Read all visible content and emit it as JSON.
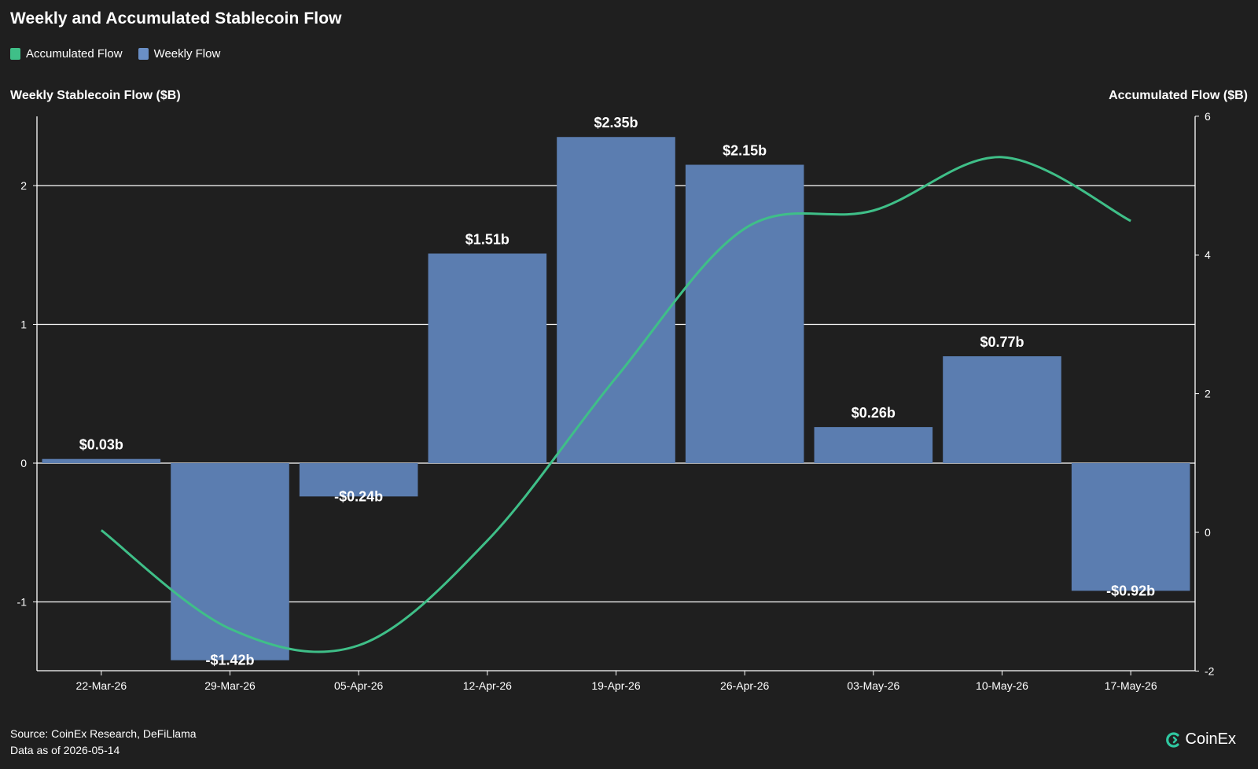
{
  "title": "Weekly and Accumulated Stablecoin Flow",
  "legend": [
    {
      "label": "Accumulated Flow",
      "color": "#3fbf88"
    },
    {
      "label": "Weekly Flow",
      "color": "#6a8fc6"
    }
  ],
  "left_axis_title": "Weekly Stablecoin Flow ($B)",
  "right_axis_title": "Accumulated Flow ($B)",
  "footer": {
    "source": "Source: CoinEx Research, DeFiLlama",
    "data_as_of": "Data as of 2026-05-14"
  },
  "logo": {
    "text": "CoinEx",
    "icon": "coinex-logo-icon"
  },
  "colors": {
    "bar": "#5b7db0",
    "line": "#3fbf88",
    "grid": "#ffffff",
    "background": "#1f1f1f"
  },
  "chart_data": {
    "type": "bar",
    "categories": [
      "22-Mar-26",
      "29-Mar-26",
      "05-Apr-26",
      "12-Apr-26",
      "19-Apr-26",
      "26-Apr-26",
      "03-May-26",
      "10-May-26",
      "17-May-26"
    ],
    "series": [
      {
        "name": "Weekly Flow",
        "type": "bar",
        "axis": "left",
        "values": [
          0.03,
          -1.42,
          -0.24,
          1.51,
          2.35,
          2.15,
          0.26,
          0.77,
          -0.92
        ],
        "labels": [
          "$0.03b",
          "-$1.42b",
          "-$0.24b",
          "$1.51b",
          "$2.35b",
          "$2.15b",
          "$0.26b",
          "$0.77b",
          "-$0.92b"
        ]
      },
      {
        "name": "Accumulated Flow",
        "type": "line",
        "axis": "right",
        "values": [
          0.03,
          -1.39,
          -1.63,
          -0.12,
          2.23,
          4.38,
          4.64,
          5.41,
          4.49
        ]
      }
    ],
    "left_axis": {
      "ticks": [
        -1,
        0,
        1,
        2
      ],
      "range": [
        -1.5,
        2.5
      ]
    },
    "right_axis": {
      "ticks": [
        -2,
        0,
        2,
        4,
        6
      ],
      "range": [
        -2,
        6
      ]
    },
    "grid": true
  }
}
